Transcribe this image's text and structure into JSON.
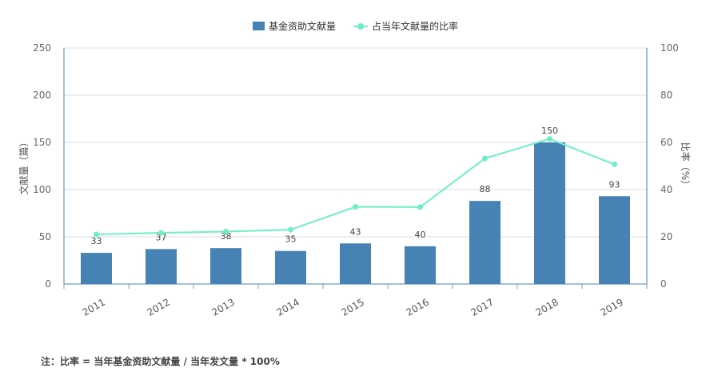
{
  "chart_data": {
    "type": "bar",
    "categories": [
      "2011",
      "2012",
      "2013",
      "2014",
      "2015",
      "2016",
      "2017",
      "2018",
      "2019"
    ],
    "series": [
      {
        "name": "基金资助文献量",
        "type": "bar",
        "axis": "left",
        "values": [
          33,
          37,
          38,
          35,
          43,
          40,
          88,
          150,
          93
        ],
        "color": "#4682b4"
      },
      {
        "name": "占当年文献量的比率",
        "type": "line",
        "axis": "right",
        "values": [
          21,
          21.7,
          22.2,
          23,
          32.7,
          32.6,
          53.2,
          61.5,
          50.7
        ],
        "color": "#6eeec8"
      }
    ],
    "ylabel": "文献量（篇）",
    "y2label": "比率（%）",
    "ylim": [
      0,
      250
    ],
    "y2lim": [
      0,
      100
    ],
    "yticks": [
      0,
      50,
      100,
      150,
      200,
      250
    ],
    "y2ticks": [
      0,
      20,
      40,
      60,
      80,
      100
    ],
    "grid": true,
    "legend": "top-center"
  },
  "footnote": "注：比率 = 当年基金资助文献量 / 当年发文量 * 100%"
}
